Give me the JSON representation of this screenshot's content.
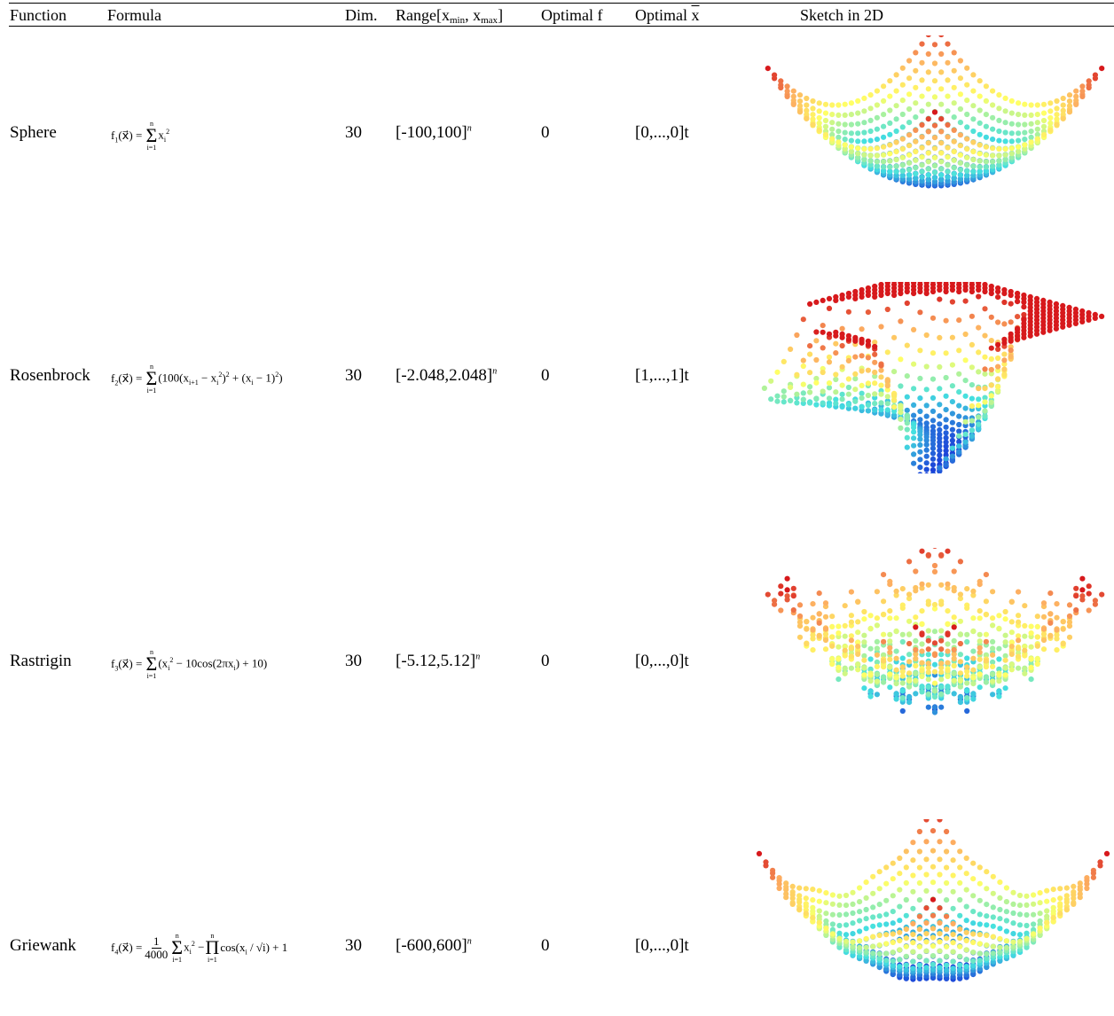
{
  "table": {
    "headers": {
      "function": "Function",
      "formula": "Formula",
      "dim": "Dim.",
      "range_prefix": "Range[x",
      "range_sub_min": "min",
      "range_sep": ", x",
      "range_sub_max": "max",
      "range_suffix": "]",
      "optimal_f": "Optimal f",
      "optimal_x_prefix": "Optimal ",
      "optimal_x_sym": "x",
      "sketch": "Sketch in 2D"
    },
    "rows": [
      {
        "name": "Sphere",
        "formula_lhs": "f",
        "formula_idx": "1",
        "dim": "30",
        "range": "[-100,100]",
        "range_exp": "n",
        "opt_f": "0",
        "opt_x": "[0,...,0]t"
      },
      {
        "name": "Rosenbrock",
        "formula_lhs": "f",
        "formula_idx": "2",
        "dim": "30",
        "range": "[-2.048,2.048]",
        "range_exp": "n",
        "opt_f": "0",
        "opt_x": "[1,...,1]t"
      },
      {
        "name": "Rastrigin",
        "formula_lhs": "f",
        "formula_idx": "3",
        "dim": "30",
        "range": "[-5.12,5.12]",
        "range_exp": "n",
        "opt_f": "0",
        "opt_x": "[0,...,0]t"
      },
      {
        "name": "Griewank",
        "formula_lhs": "f",
        "formula_idx": "4",
        "dim": "30",
        "range": "[-600,600]",
        "range_exp": "n",
        "opt_f": "0",
        "opt_x": "[0,...,0]t"
      }
    ]
  },
  "colors": {
    "high": "#d7191c",
    "mid_high": "#fdae61",
    "mid": "#ffff66",
    "mid_low": "#44e0e0",
    "low": "#1a3fd8"
  },
  "sketch_types": [
    "bowl",
    "valley",
    "rugged",
    "bowl-ripple"
  ]
}
